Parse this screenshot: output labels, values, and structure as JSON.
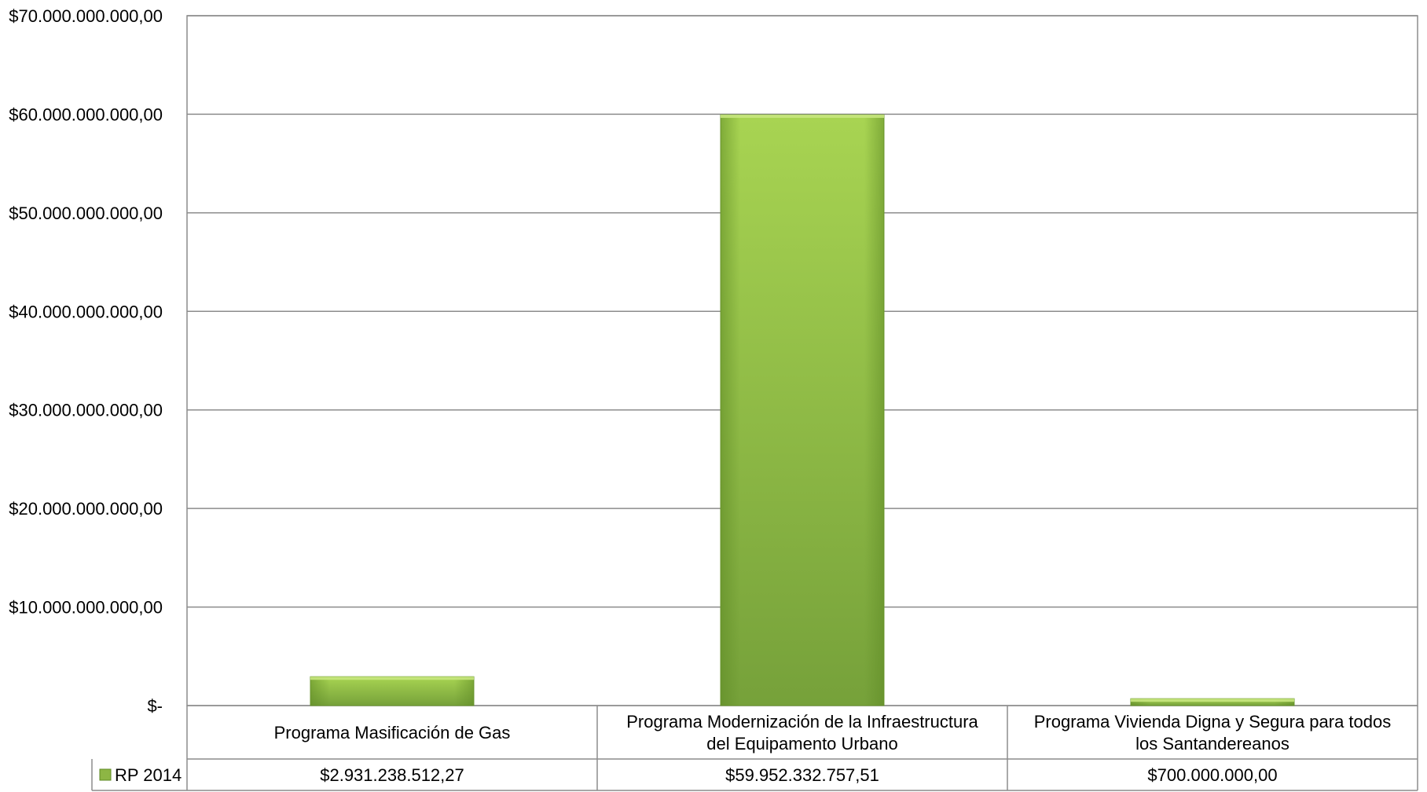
{
  "chart_data": {
    "type": "bar",
    "categories": [
      "Programa Masificación de Gas",
      "Programa Modernización de la Infraestructura del Equipamento Urbano",
      "Programa Vivienda Digna y Segura para todos los Santandereanos"
    ],
    "category_lines": [
      [
        "Programa Masificación de Gas"
      ],
      [
        "Programa Modernización de la Infraestructura",
        "del Equipamento Urbano"
      ],
      [
        "Programa Vivienda Digna y Segura para todos",
        "los Santandereanos"
      ]
    ],
    "series": [
      {
        "name": "RP 2014",
        "values": [
          2931238512.27,
          59952332757.51,
          700000000.0
        ],
        "value_labels": [
          "$2.931.238.512,27",
          "$59.952.332.757,51",
          "$700.000.000,00"
        ],
        "color": "#8DB644"
      }
    ],
    "ylim": [
      0,
      70000000000
    ],
    "yticks": [
      {
        "value": 70000000000,
        "label": "$70.000.000.000,00"
      },
      {
        "value": 60000000000,
        "label": "$60.000.000.000,00"
      },
      {
        "value": 50000000000,
        "label": "$50.000.000.000,00"
      },
      {
        "value": 40000000000,
        "label": "$40.000.000.000,00"
      },
      {
        "value": 30000000000,
        "label": "$30.000.000.000,00"
      },
      {
        "value": 20000000000,
        "label": "$20.000.000.000,00"
      },
      {
        "value": 10000000000,
        "label": "$10.000.000.000,00"
      },
      {
        "value": 0,
        "label": "$-"
      }
    ],
    "grid": true,
    "data_table": true,
    "legend_placement": "data-table"
  }
}
